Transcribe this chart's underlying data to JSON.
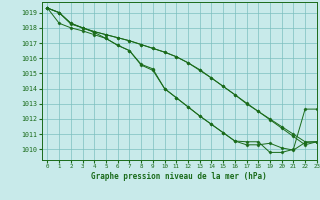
{
  "title": "Graphe pression niveau de la mer (hPa)",
  "bg_color": "#c8eaea",
  "grid_color": "#7dbfbf",
  "line_color": "#1a6b1a",
  "xlim": [
    -0.5,
    23
  ],
  "ylim": [
    1009.3,
    1019.7
  ],
  "xticks": [
    0,
    1,
    2,
    3,
    4,
    5,
    6,
    7,
    8,
    9,
    10,
    11,
    12,
    13,
    14,
    15,
    16,
    17,
    18,
    19,
    20,
    21,
    22,
    23
  ],
  "yticks": [
    1010,
    1011,
    1012,
    1013,
    1014,
    1015,
    1016,
    1017,
    1018,
    1019
  ],
  "series": [
    [
      1019.3,
      1019.0,
      1018.3,
      1018.0,
      1017.75,
      1017.55,
      1017.35,
      1017.15,
      1016.9,
      1016.65,
      1016.4,
      1016.1,
      1015.7,
      1015.25,
      1014.7,
      1014.15,
      1013.6,
      1013.05,
      1012.5,
      1011.95,
      1011.4,
      1010.85,
      1010.3,
      1010.5
    ],
    [
      1019.3,
      1019.0,
      1018.25,
      1018.0,
      1017.7,
      1017.3,
      1016.85,
      1016.5,
      1015.55,
      1015.2,
      1014.0,
      1013.4,
      1012.8,
      1012.2,
      1011.65,
      1011.1,
      1010.55,
      1010.3,
      1010.3,
      1010.4,
      1010.1,
      1009.95,
      1010.45,
      1010.5
    ],
    [
      1019.3,
      1019.0,
      1018.3,
      1018.0,
      1017.75,
      1017.55,
      1017.35,
      1017.15,
      1016.9,
      1016.65,
      1016.4,
      1016.1,
      1015.7,
      1015.2,
      1014.7,
      1014.15,
      1013.6,
      1013.0,
      1012.5,
      1012.0,
      1011.5,
      1011.0,
      1010.5,
      1010.5
    ],
    [
      1019.3,
      1018.3,
      1018.0,
      1017.8,
      1017.55,
      1017.3,
      1016.85,
      1016.5,
      1015.6,
      1015.3,
      1014.0,
      1013.4,
      1012.8,
      1012.2,
      1011.65,
      1011.1,
      1010.55,
      1010.5,
      1010.5,
      1009.8,
      1009.8,
      1010.0,
      1012.65,
      1012.65
    ]
  ]
}
